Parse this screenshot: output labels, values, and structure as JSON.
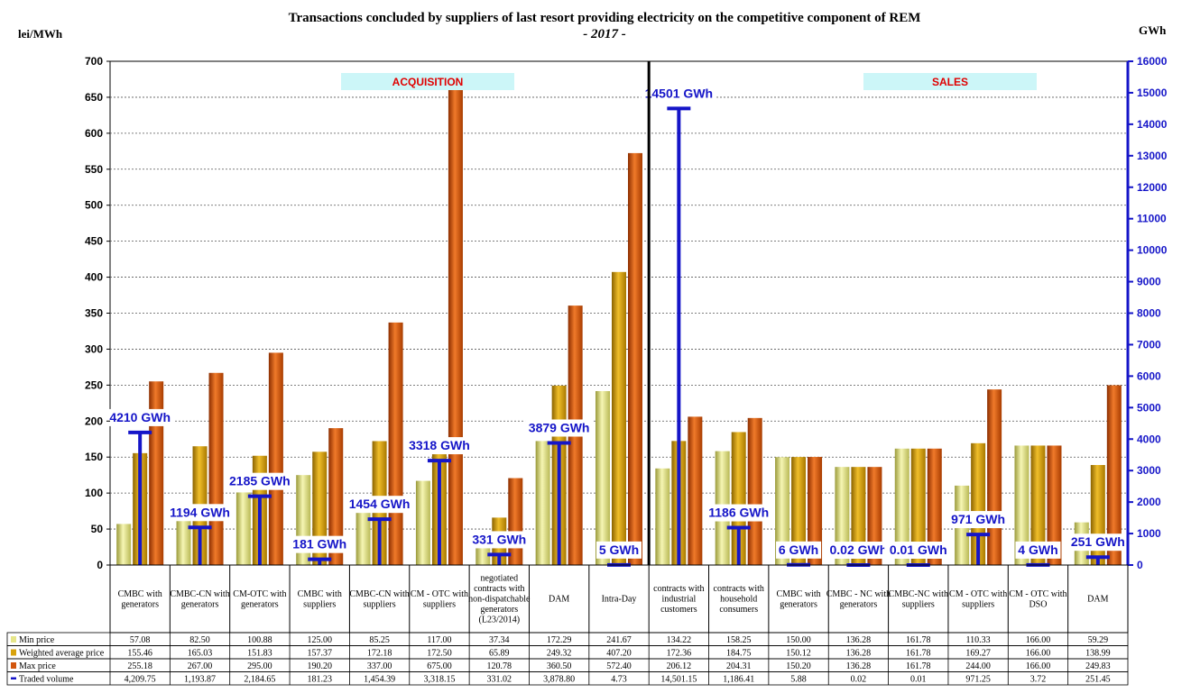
{
  "chart_data": {
    "type": "bar",
    "title": "Transactions concluded by suppliers of last resort providing  electricity on the competitive component of REM",
    "subtitle": "- 2017 -",
    "ylabel": "lei/MWh",
    "y2label": "GWh",
    "ylim": [
      0,
      700
    ],
    "y2lim": [
      0,
      16000
    ],
    "yticks": [
      "0",
      "50",
      "100",
      "150",
      "200",
      "250",
      "300",
      "350",
      "400",
      "450",
      "500",
      "550",
      "600",
      "650",
      "700"
    ],
    "y2ticks": [
      "0",
      "1000",
      "2000",
      "3000",
      "4000",
      "5000",
      "6000",
      "7000",
      "8000",
      "9000",
      "10000",
      "11000",
      "12000",
      "13000",
      "14000",
      "15000",
      "16000"
    ],
    "sections": [
      "ACQUISITION",
      "SALES"
    ],
    "categories": [
      "CMBC with generators",
      "CMBC-CN with generators",
      "CM-OTC with generators",
      "CMBC with suppliers",
      "CMBC-CN with suppliers",
      "CM - OTC with suppliers",
      "negotiated contracts with non-dispatchable generators (L23/2014)",
      "DAM",
      "Intra-Day",
      "contracts with industrial customers",
      "contracts with household consumers",
      "CMBC with generators",
      "CMBC - NC with generators",
      "CMBC-NC with suppliers",
      "CM - OTC with suppliers",
      "CM - OTC with DSO",
      "DAM"
    ],
    "series": [
      {
        "name": "Min price",
        "color": "#e6e68a",
        "values": [
          57.08,
          82.5,
          100.88,
          125.0,
          85.25,
          117.0,
          37.34,
          172.29,
          241.67,
          134.22,
          158.25,
          150.0,
          136.28,
          161.78,
          110.33,
          166.0,
          59.29
        ],
        "labels": [
          "57.08",
          "82.50",
          "100.88",
          "125.00",
          "85.25",
          "117.00",
          "37.34",
          "172.29",
          "241.67",
          "134.22",
          "158.25",
          "150.00",
          "136.28",
          "161.78",
          "110.33",
          "166.00",
          "59.29"
        ]
      },
      {
        "name": "Weighted average price",
        "color": "#d8a20c",
        "values": [
          155.46,
          165.03,
          151.83,
          157.37,
          172.18,
          172.5,
          65.89,
          249.32,
          407.2,
          172.36,
          184.75,
          150.12,
          136.28,
          161.78,
          169.27,
          166.0,
          138.99
        ],
        "labels": [
          "155.46",
          "165.03",
          "151.83",
          "157.37",
          "172.18",
          "172.50",
          "65.89",
          "249.32",
          "407.20",
          "172.36",
          "184.75",
          "150.12",
          "136.28",
          "161.78",
          "169.27",
          "166.00",
          "138.99"
        ]
      },
      {
        "name": "Max price",
        "color": "#d2560f",
        "values": [
          255.18,
          267.0,
          295.0,
          190.2,
          337.0,
          675.0,
          120.78,
          360.5,
          572.4,
          206.12,
          204.31,
          150.2,
          136.28,
          161.78,
          244.0,
          166.0,
          249.83
        ],
        "labels": [
          "255.18",
          "267.00",
          "295.00",
          "190.20",
          "337.00",
          "675.00",
          "120.78",
          "360.50",
          "572.40",
          "206.12",
          "204.31",
          "150.20",
          "136.28",
          "161.78",
          "244.00",
          "166.00",
          "249.83"
        ]
      },
      {
        "name": "Traded volume",
        "color": "#1515c8",
        "axis": "right",
        "values": [
          4209.75,
          1193.87,
          2184.65,
          181.23,
          1454.39,
          3318.15,
          331.02,
          3878.8,
          4.73,
          14501.15,
          1186.41,
          5.88,
          0.02,
          0.01,
          971.25,
          3.72,
          251.45
        ],
        "labels": [
          "4,209.75",
          "1,193.87",
          "2,184.65",
          "181.23",
          "1,454.39",
          "3,318.15",
          "331.02",
          "3,878.80",
          "4.73",
          "14,501.15",
          "1,186.41",
          "5.88",
          "0.02",
          "0.01",
          "971.25",
          "3.72",
          "251.45"
        ],
        "annotations": [
          "4210 GWh",
          "1194 GWh",
          "2185 GWh",
          "181 GWh",
          "1454 GWh",
          "3318 GWh",
          "331 GWh",
          "3879 GWh",
          "5 GWh",
          "14501 GWh",
          "1186 GWh",
          "6 GWh",
          "0.02 GWh",
          "0.01 GWh",
          "971 GWh",
          "4 GWh",
          "251 GWh"
        ]
      }
    ],
    "grid": true
  }
}
